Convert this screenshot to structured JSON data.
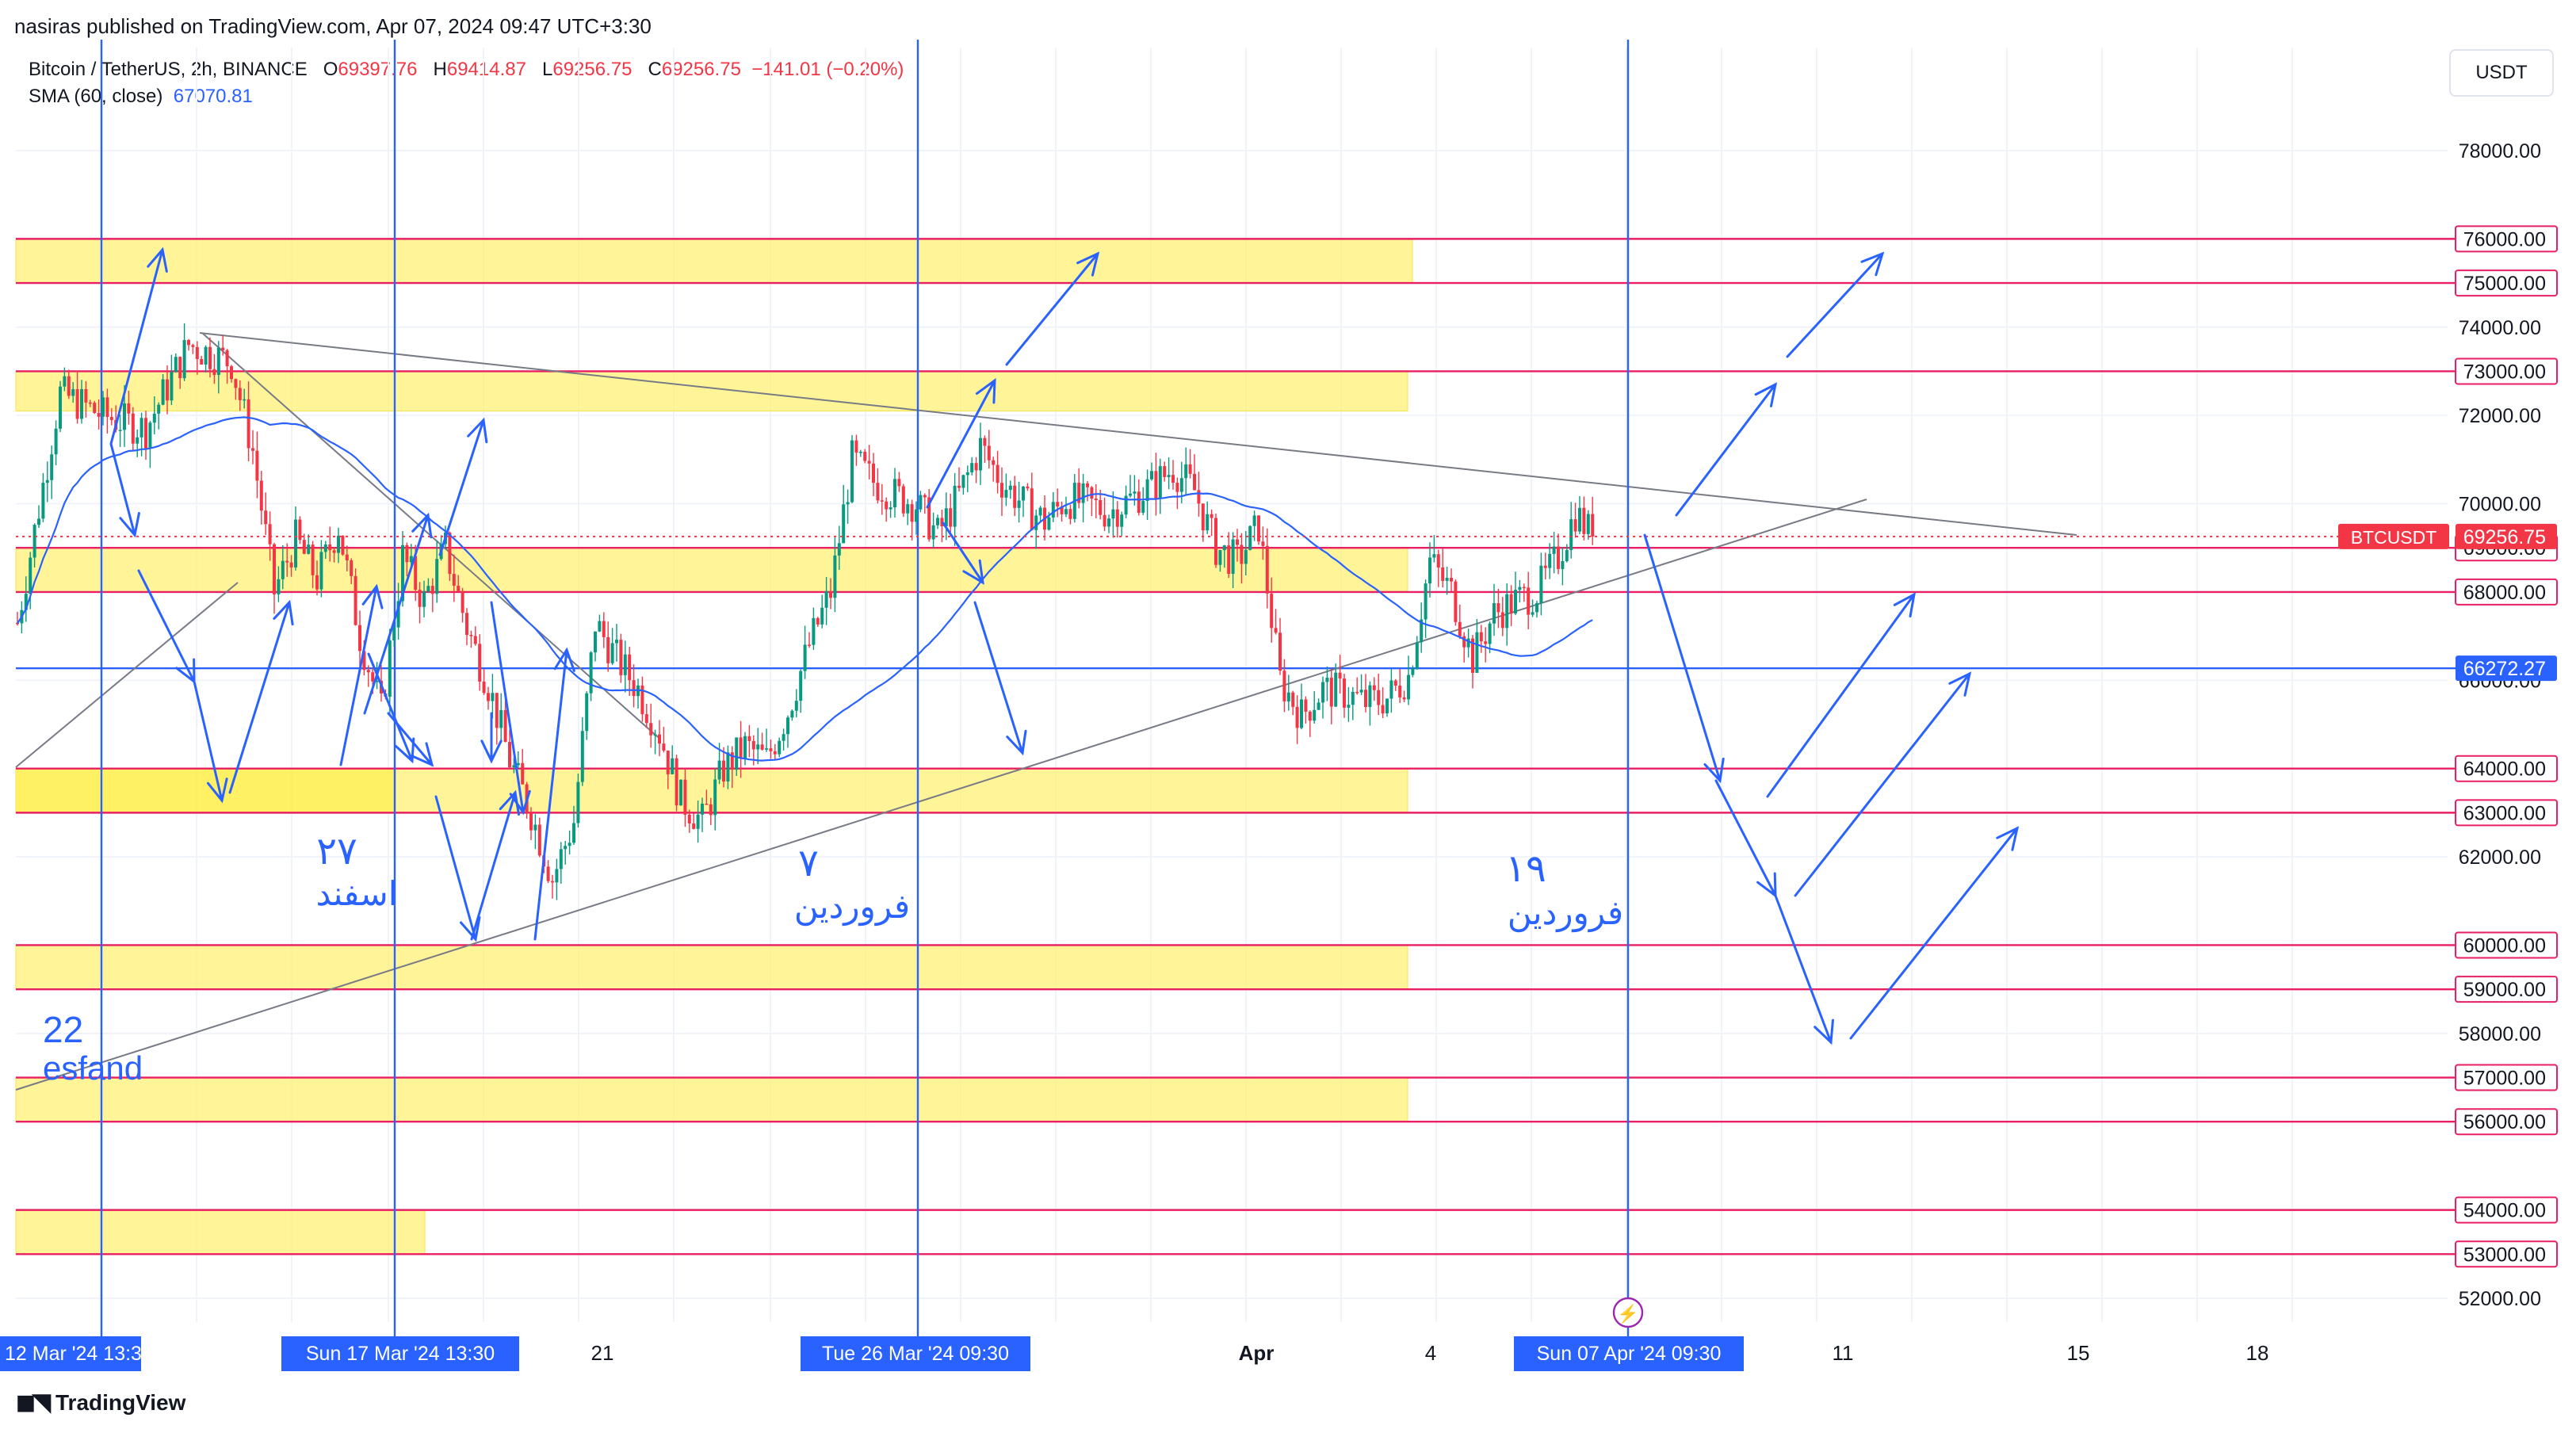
{
  "header": {
    "published": "nasiras published on TradingView.com, Apr 07, 2024 09:47 UTC+3:30"
  },
  "legend": {
    "symbol": "Bitcoin / TetherUS, 2h, BINANCE",
    "o_label": "O",
    "o_value": "69397.76",
    "h_label": "H",
    "h_value": "69414.87",
    "l_label": "L",
    "l_value": "69256.75",
    "c_label": "C",
    "c_value": "69256.75",
    "change": "−141.01 (−0.20%)",
    "sma_label": "SMA (60, close)",
    "sma_value": "67070.81"
  },
  "currency": "USDT",
  "brand": {
    "name": "TradingView",
    "icon": "tradingview-logo-icon"
  },
  "colors": {
    "candle_up": "#089981",
    "candle_down": "#f23645",
    "sma": "#2962ff",
    "zone": "#fff176",
    "level_line": "#e91e63",
    "annotation": "#2962ff",
    "trendline": "#787b86",
    "price_tag": "#f23645",
    "current_line": "#2962ff"
  },
  "chart_data": {
    "type": "candlestick",
    "symbol": "BTCUSDT",
    "interval": "2h",
    "ylim": [
      51000,
      81000
    ],
    "y_ticks": [
      "52000.00",
      "54000.00",
      "56000.00",
      "58000.00",
      "60000.00",
      "62000.00",
      "64000.00",
      "66000.00",
      "68000.00",
      "70000.00",
      "72000.00",
      "74000.00",
      "76000.00",
      "78000.00"
    ],
    "x_tick_labels": [
      {
        "label": "e 12 Mar '24   13:30",
        "highlight": true
      },
      {
        "label": "Sun 17 Mar '24   13:30",
        "highlight": true
      },
      {
        "label": "21",
        "highlight": false
      },
      {
        "label": "Tue 26 Mar '24   09:30",
        "highlight": true
      },
      {
        "label": "Apr",
        "highlight": false
      },
      {
        "label": "4",
        "highlight": false
      },
      {
        "label": "Sun 07 Apr '24   09:30",
        "highlight": true
      },
      {
        "label": "11",
        "highlight": false
      },
      {
        "label": "15",
        "highlight": false
      },
      {
        "label": "18",
        "highlight": false
      }
    ],
    "price_levels": [
      {
        "price": 76000,
        "label": "76000.00"
      },
      {
        "price": 75000,
        "label": "75000.00"
      },
      {
        "price": 73000,
        "label": "73000.00"
      },
      {
        "price": 69000,
        "label": "69000.00"
      },
      {
        "price": 68000,
        "label": "68000.00"
      },
      {
        "price": 64000,
        "label": "64000.00"
      },
      {
        "price": 63000,
        "label": "63000.00"
      },
      {
        "price": 60000,
        "label": "60000.00"
      },
      {
        "price": 59000,
        "label": "59000.00"
      },
      {
        "price": 57000,
        "label": "57000.00"
      },
      {
        "price": 56000,
        "label": "56000.00"
      },
      {
        "price": 54000,
        "label": "54000.00"
      },
      {
        "price": 53000,
        "label": "53000.00"
      }
    ],
    "blue_level": {
      "price": 66272.27,
      "label": "66272.27"
    },
    "current_price": {
      "price": 69256.75,
      "label": "69256.75",
      "symbol_tag": "BTCUSDT"
    },
    "zones": [
      {
        "low": 75000,
        "high": 76000
      },
      {
        "low": 72100,
        "high": 73000
      },
      {
        "low": 68000,
        "high": 69000
      },
      {
        "low": 63000,
        "high": 64000
      },
      {
        "low": 59000,
        "high": 60000
      },
      {
        "low": 56000,
        "high": 57000
      },
      {
        "low": 53000,
        "high": 54000
      }
    ],
    "annotations": [
      {
        "text": "22",
        "lang": "en"
      },
      {
        "text": "esfand",
        "lang": "en"
      },
      {
        "text": "۲۷",
        "lang": "fa"
      },
      {
        "text": "اسفند",
        "lang": "fa"
      },
      {
        "text": "۷",
        "lang": "fa"
      },
      {
        "text": "فروردین",
        "lang": "fa"
      },
      {
        "text": "۱۹",
        "lang": "fa"
      },
      {
        "text": "فروردین",
        "lang": "fa"
      }
    ],
    "price_path": [
      [
        0,
        67300
      ],
      [
        10,
        72500
      ],
      [
        20,
        72000
      ],
      [
        30,
        71700
      ],
      [
        40,
        73600
      ],
      [
        50,
        73200
      ],
      [
        55,
        71200
      ],
      [
        60,
        68000
      ],
      [
        65,
        69200
      ],
      [
        70,
        68300
      ],
      [
        75,
        69500
      ],
      [
        80,
        67000
      ],
      [
        85,
        65300
      ],
      [
        90,
        68800
      ],
      [
        95,
        67800
      ],
      [
        100,
        69000
      ],
      [
        105,
        67200
      ],
      [
        110,
        65900
      ],
      [
        115,
        64200
      ],
      [
        120,
        63000
      ],
      [
        125,
        61500
      ],
      [
        130,
        62800
      ],
      [
        135,
        67300
      ],
      [
        140,
        66500
      ],
      [
        145,
        65800
      ],
      [
        150,
        64800
      ],
      [
        155,
        63300
      ],
      [
        160,
        62800
      ],
      [
        165,
        64000
      ],
      [
        170,
        64500
      ],
      [
        175,
        64200
      ],
      [
        180,
        65300
      ],
      [
        185,
        66800
      ],
      [
        190,
        68000
      ],
      [
        195,
        71000
      ],
      [
        200,
        70500
      ],
      [
        205,
        70200
      ],
      [
        210,
        70000
      ],
      [
        215,
        69300
      ],
      [
        220,
        70200
      ],
      [
        225,
        71300
      ],
      [
        230,
        70500
      ],
      [
        235,
        70000
      ],
      [
        240,
        69600
      ],
      [
        245,
        70100
      ],
      [
        250,
        70000
      ],
      [
        255,
        69800
      ],
      [
        260,
        70100
      ],
      [
        265,
        70400
      ],
      [
        270,
        70800
      ],
      [
        275,
        70300
      ],
      [
        280,
        69000
      ],
      [
        285,
        68700
      ],
      [
        290,
        69500
      ],
      [
        295,
        66000
      ],
      [
        300,
        65200
      ],
      [
        305,
        65800
      ],
      [
        310,
        65700
      ],
      [
        315,
        65500
      ],
      [
        320,
        65600
      ],
      [
        325,
        66100
      ],
      [
        330,
        68700
      ],
      [
        335,
        68000
      ],
      [
        340,
        66500
      ],
      [
        345,
        67500
      ],
      [
        350,
        67800
      ],
      [
        355,
        68000
      ],
      [
        360,
        68800
      ],
      [
        364,
        69800
      ],
      [
        368,
        69257
      ]
    ]
  }
}
